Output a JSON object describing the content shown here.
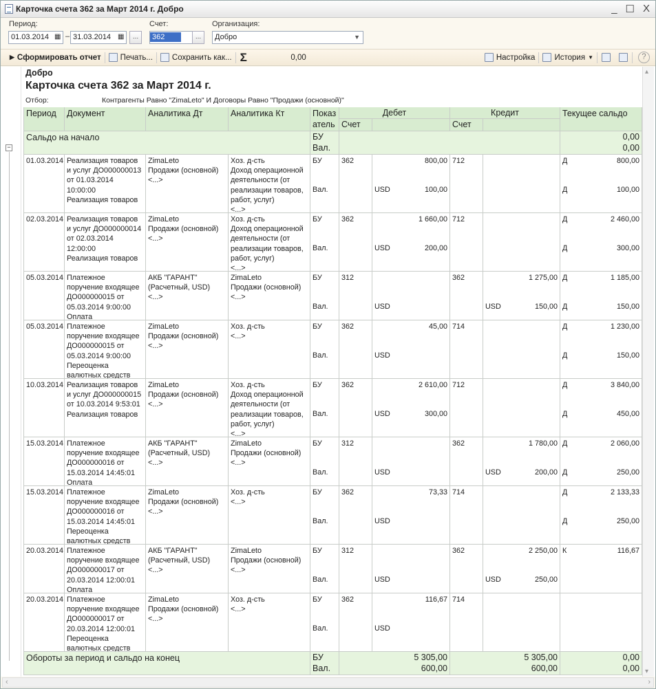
{
  "window": {
    "title": "Карточка счета 362 за Март 2014 г. Добро",
    "min": "_",
    "max": "☐",
    "close": "X"
  },
  "filters": {
    "period_label": "Период:",
    "date_from": "01.03.2014",
    "date_to": "31.03.2014",
    "dash": "–",
    "more": "...",
    "account_label": "Счет:",
    "account": "362",
    "org_label": "Организация:",
    "org": "Добро"
  },
  "toolbar": {
    "generate": "Сформировать отчет",
    "print": "Печать...",
    "save": "Сохранить как...",
    "sigma": "Σ",
    "sum": "0,00",
    "settings": "Настройка",
    "history": "История",
    "help": "?"
  },
  "report": {
    "org": "Добро",
    "title": "Карточка счета 362 за Март 2014 г.",
    "filter_label": "Отбор:",
    "filter": "Контрагенты Равно \"ZimaLeto\" И Договоры Равно \"Продажи (основной)\""
  },
  "headers": {
    "period": "Период",
    "document": "Документ",
    "an_dt": "Аналитика Дт",
    "an_kt": "Аналитика Кт",
    "ind1": "Показ",
    "ind2": "атель",
    "debit": "Дебет",
    "credit": "Кредит",
    "acc": "Счет",
    "saldo": "Текущее сальдо"
  },
  "opening": {
    "label": "Сальдо на начало",
    "bu": "БУ",
    "val": "Вал.",
    "bu_saldo": "0,00",
    "val_saldo": "0,00"
  },
  "rows": [
    {
      "h": 85,
      "date": "01.03.2014",
      "doc": [
        "Реализация товаров",
        "и услуг ДО000000013",
        "от 01.03.2014",
        "10:00:00",
        "Реализация товаров"
      ],
      "dt": [
        "ZimaLeto",
        "Продажи (основной)",
        "<...>"
      ],
      "kt": [
        "Хоз. д-сть",
        "Доход операционной",
        "деятельности (от",
        "реализации товаров,",
        "работ, услуг)",
        "<...>"
      ],
      "bu": [
        "БУ",
        "362",
        "800,00",
        "712",
        "",
        "Д",
        "800,00"
      ],
      "val": [
        "Вал.",
        "",
        "USD",
        "100,00",
        "",
        "",
        "Д",
        "100,00"
      ]
    },
    {
      "h": 85,
      "date": "02.03.2014",
      "doc": [
        "Реализация товаров",
        "и услуг ДО000000014",
        "от 02.03.2014",
        "12:00:00",
        "Реализация товаров"
      ],
      "dt": [
        "ZimaLeto",
        "Продажи (основной)",
        "<...>"
      ],
      "kt": [
        "Хоз. д-сть",
        "Доход операционной",
        "деятельности (от",
        "реализации товаров,",
        "работ, услуг)",
        "<...>"
      ],
      "bu": [
        "БУ",
        "362",
        "1 660,00",
        "712",
        "",
        "Д",
        "2 460,00"
      ],
      "val": [
        "Вал.",
        "",
        "USD",
        "200,00",
        "",
        "",
        "Д",
        "300,00"
      ]
    },
    {
      "h": 71,
      "date": "05.03.2014",
      "doc": [
        "Платежное",
        "поручение входящее",
        "ДО000000015 от",
        "05.03.2014 9:00:00",
        "Оплата"
      ],
      "dt": [
        "АКБ \"ГАРАНТ\"",
        "(Расчетный, USD)",
        "<...>"
      ],
      "kt": [
        "ZimaLeto",
        "Продажи (основной)",
        "<...>"
      ],
      "bu": [
        "БУ",
        "312",
        "",
        "362",
        "1 275,00",
        "Д",
        "1 185,00"
      ],
      "val": [
        "Вал.",
        "",
        "USD",
        "",
        "USD",
        "150,00",
        "Д",
        "150,00"
      ]
    },
    {
      "h": 85,
      "date": "05.03.2014",
      "doc": [
        "Платежное",
        "поручение входящее",
        "ДО000000015 от",
        "05.03.2014 9:00:00",
        "Переоценка",
        "валютных средств"
      ],
      "dt": [
        "ZimaLeto",
        "Продажи (основной)",
        "<...>"
      ],
      "kt": [
        "Хоз. д-сть",
        "<...>"
      ],
      "bu": [
        "БУ",
        "362",
        "45,00",
        "714",
        "",
        "Д",
        "1 230,00"
      ],
      "val": [
        "Вал.",
        "",
        "USD",
        "",
        "",
        "",
        "Д",
        "150,00"
      ]
    },
    {
      "h": 85,
      "date": "10.03.2014",
      "doc": [
        "Реализация товаров",
        "и услуг ДО000000015",
        "от 10.03.2014 9:53:01",
        "Реализация товаров"
      ],
      "dt": [
        "ZimaLeto",
        "Продажи (основной)",
        "<...>"
      ],
      "kt": [
        "Хоз. д-сть",
        "Доход операционной",
        "деятельности (от",
        "реализации товаров,",
        "работ, услуг)",
        "<...>"
      ],
      "bu": [
        "БУ",
        "362",
        "2 610,00",
        "712",
        "",
        "Д",
        "3 840,00"
      ],
      "val": [
        "Вал.",
        "",
        "USD",
        "300,00",
        "",
        "",
        "Д",
        "450,00"
      ]
    },
    {
      "h": 71,
      "date": "15.03.2014",
      "doc": [
        "Платежное",
        "поручение входящее",
        "ДО000000016 от",
        "15.03.2014 14:45:01",
        "Оплата"
      ],
      "dt": [
        "АКБ \"ГАРАНТ\"",
        "(Расчетный, USD)",
        "<...>"
      ],
      "kt": [
        "ZimaLeto",
        "Продажи (основной)",
        "<...>"
      ],
      "bu": [
        "БУ",
        "312",
        "",
        "362",
        "1 780,00",
        "Д",
        "2 060,00"
      ],
      "val": [
        "Вал.",
        "",
        "USD",
        "",
        "USD",
        "200,00",
        "Д",
        "250,00"
      ]
    },
    {
      "h": 85,
      "date": "15.03.2014",
      "doc": [
        "Платежное",
        "поручение входящее",
        "ДО000000016 от",
        "15.03.2014 14:45:01",
        "Переоценка",
        "валютных средств"
      ],
      "dt": [
        "ZimaLeto",
        "Продажи (основной)",
        "<...>"
      ],
      "kt": [
        "Хоз. д-сть",
        "<...>"
      ],
      "bu": [
        "БУ",
        "362",
        "73,33",
        "714",
        "",
        "Д",
        "2 133,33"
      ],
      "val": [
        "Вал.",
        "",
        "USD",
        "",
        "",
        "",
        "Д",
        "250,00"
      ]
    },
    {
      "h": 71,
      "date": "20.03.2014",
      "doc": [
        "Платежное",
        "поручение входящее",
        "ДО000000017 от",
        "20.03.2014 12:00:01",
        "Оплата"
      ],
      "dt": [
        "АКБ \"ГАРАНТ\"",
        "(Расчетный, USD)",
        "<...>"
      ],
      "kt": [
        "ZimaLeto",
        "Продажи (основной)",
        "<...>"
      ],
      "bu": [
        "БУ",
        "312",
        "",
        "362",
        "2 250,00",
        "К",
        "116,67"
      ],
      "val": [
        "Вал.",
        "",
        "USD",
        "",
        "USD",
        "250,00",
        "",
        ""
      ]
    },
    {
      "h": 85,
      "date": "20.03.2014",
      "doc": [
        "Платежное",
        "поручение входящее",
        "ДО000000017 от",
        "20.03.2014 12:00:01",
        "Переоценка",
        "валютных средств"
      ],
      "dt": [
        "ZimaLeto",
        "Продажи (основной)",
        "<...>"
      ],
      "kt": [
        "Хоз. д-сть",
        "<...>"
      ],
      "bu": [
        "БУ",
        "362",
        "116,67",
        "714",
        "",
        "",
        ""
      ],
      "val": [
        "Вал.",
        "",
        "USD",
        "",
        "",
        "",
        "",
        ""
      ]
    }
  ],
  "totals": {
    "label": "Обороты за период и сальдо на конец",
    "bu": "БУ",
    "val": "Вал.",
    "bu_debit": "5 305,00",
    "bu_credit": "5 305,00",
    "bu_saldo": "0,00",
    "val_debit": "600,00",
    "val_credit": "600,00",
    "val_saldo": "0,00"
  }
}
